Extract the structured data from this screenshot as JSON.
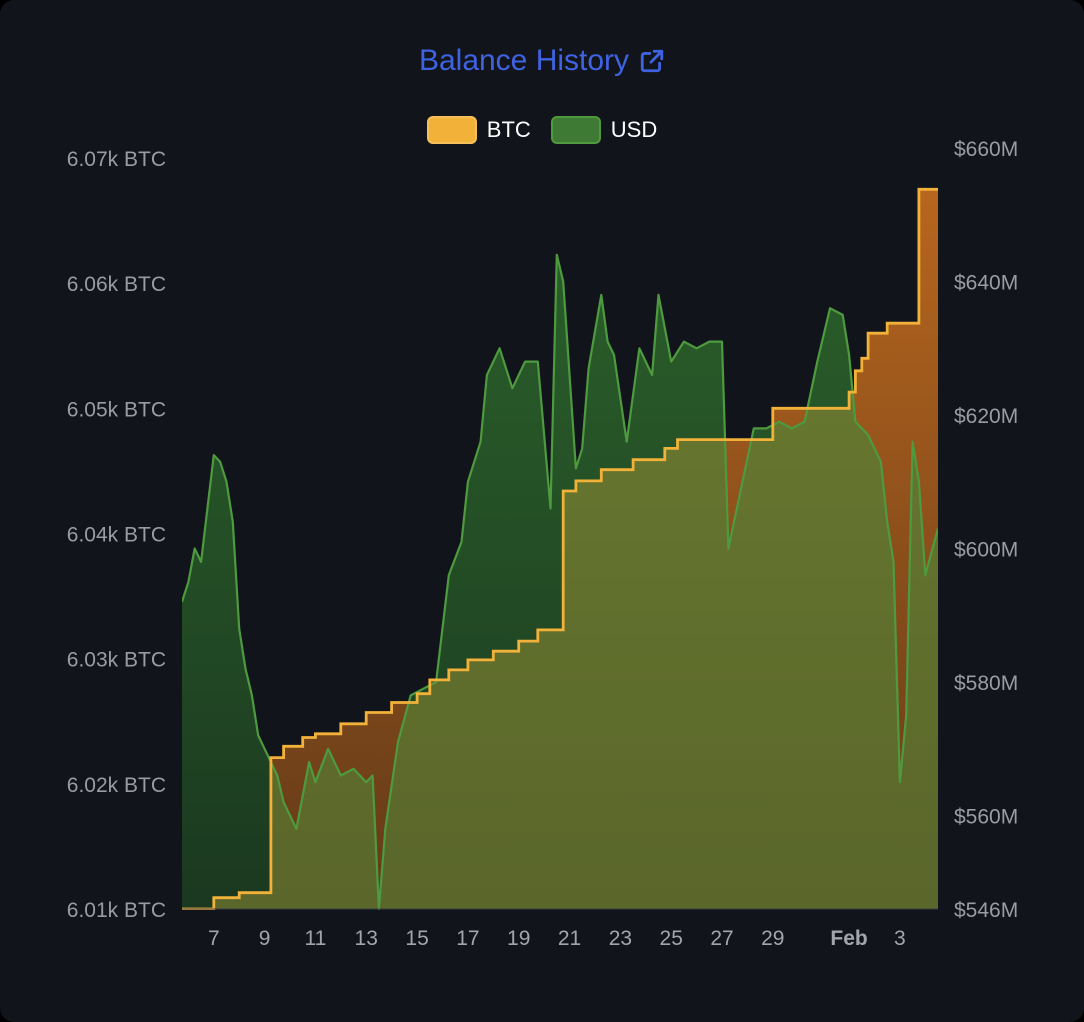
{
  "title": "Balance History",
  "colors": {
    "card_bg": "#12141c",
    "title": "#3f63e0",
    "btc": "#f2b23a",
    "btc_fill": "#b8641e",
    "usd": "#4e9a3f",
    "usd_fill": "#1e4424",
    "axis_text": "#9a9ca3"
  },
  "legend": [
    {
      "label": "BTC",
      "color": "#f2b23a"
    },
    {
      "label": "USD",
      "color": "#4f9a3e"
    }
  ],
  "chart_data": {
    "type": "area",
    "y_left": {
      "ticks": [
        6010,
        6020,
        6030,
        6040,
        6050,
        6060,
        6070
      ],
      "tick_labels": [
        "6.01k BTC",
        "6.02k BTC",
        "6.03k BTC",
        "6.04k BTC",
        "6.05k BTC",
        "6.06k BTC",
        "6.07k BTC"
      ],
      "range": [
        6010,
        6070.8
      ]
    },
    "y_right": {
      "ticks": [
        546,
        560,
        580,
        600,
        620,
        640,
        660
      ],
      "tick_labels": [
        "$546M",
        "$560M",
        "$580M",
        "$600M",
        "$620M",
        "$640M",
        "$660M"
      ],
      "range": [
        546,
        660
      ]
    },
    "x_axis": {
      "range": [
        "Jan 5 18:00",
        "Feb 4 12:00"
      ],
      "ticks": [
        "Jan 7",
        "Jan 9",
        "Jan 11",
        "Jan 13",
        "Jan 15",
        "Jan 17",
        "Jan 19",
        "Jan 21",
        "Jan 23",
        "Jan 25",
        "Jan 27",
        "Jan 29",
        "Feb 1",
        "Feb 3"
      ],
      "tick_labels": [
        "7",
        "9",
        "11",
        "13",
        "15",
        "17",
        "19",
        "21",
        "23",
        "25",
        "27",
        "29",
        "Feb",
        "3"
      ],
      "bold_labels": [
        "Feb"
      ]
    },
    "grid": false,
    "legend_position": "top",
    "series": [
      {
        "name": "BTC",
        "axis": "left",
        "step": true,
        "points": [
          [
            "Jan 5 18:00",
            6010.0
          ],
          [
            "Jan 7 00:00",
            6010.9
          ],
          [
            "Jan 8 00:00",
            6011.3
          ],
          [
            "Jan 9 06:00",
            6022.1
          ],
          [
            "Jan 9 18:00",
            6023.0
          ],
          [
            "Jan 10 12:00",
            6023.7
          ],
          [
            "Jan 11 00:00",
            6024.0
          ],
          [
            "Jan 12 00:00",
            6024.8
          ],
          [
            "Jan 13 00:00",
            6025.7
          ],
          [
            "Jan 14 00:00",
            6026.5
          ],
          [
            "Jan 15 00:00",
            6027.2
          ],
          [
            "Jan 15 12:00",
            6028.3
          ],
          [
            "Jan 16 06:00",
            6029.1
          ],
          [
            "Jan 17 00:00",
            6029.9
          ],
          [
            "Jan 18 00:00",
            6030.6
          ],
          [
            "Jan 19 00:00",
            6031.4
          ],
          [
            "Jan 19 18:00",
            6032.3
          ],
          [
            "Jan 20 18:00",
            6043.4
          ],
          [
            "Jan 21 06:00",
            6044.2
          ],
          [
            "Jan 22 06:00",
            6045.1
          ],
          [
            "Jan 23 12:00",
            6045.9
          ],
          [
            "Jan 24 18:00",
            6046.8
          ],
          [
            "Jan 25 06:00",
            6047.5
          ],
          [
            "Jan 27 18:00",
            6047.5
          ],
          [
            "Jan 29 00:00",
            6050.0
          ],
          [
            "Feb 1 00:00",
            6050.0
          ],
          [
            "Feb 1 00:00",
            6051.3
          ],
          [
            "Feb 1 06:00",
            6053.0
          ],
          [
            "Feb 1 12:00",
            6054.0
          ],
          [
            "Feb 1 18:00",
            6056.0
          ],
          [
            "Feb 2 12:00",
            6056.8
          ],
          [
            "Feb 3 18:00",
            6067.5
          ],
          [
            "Feb 4 12:00",
            6067.5
          ]
        ]
      },
      {
        "name": "USD",
        "axis": "right",
        "step": false,
        "points": [
          [
            "Jan 5 18:00",
            592
          ],
          [
            "Jan 6 00:00",
            595
          ],
          [
            "Jan 6 06:00",
            600
          ],
          [
            "Jan 6 12:00",
            598
          ],
          [
            "Jan 6 18:00",
            606
          ],
          [
            "Jan 7 00:00",
            614
          ],
          [
            "Jan 7 06:00",
            613
          ],
          [
            "Jan 7 12:00",
            610
          ],
          [
            "Jan 7 18:00",
            604
          ],
          [
            "Jan 8 00:00",
            588
          ],
          [
            "Jan 8 06:00",
            582
          ],
          [
            "Jan 8 12:00",
            578
          ],
          [
            "Jan 8 18:00",
            572
          ],
          [
            "Jan 9 00:00",
            570
          ],
          [
            "Jan 9 12:00",
            566
          ],
          [
            "Jan 9 18:00",
            562
          ],
          [
            "Jan 10 06:00",
            558
          ],
          [
            "Jan 10 18:00",
            568
          ],
          [
            "Jan 11 00:00",
            565
          ],
          [
            "Jan 11 12:00",
            570
          ],
          [
            "Jan 12 00:00",
            566
          ],
          [
            "Jan 12 12:00",
            567
          ],
          [
            "Jan 13 00:00",
            565
          ],
          [
            "Jan 13 06:00",
            566
          ],
          [
            "Jan 13 12:00",
            546
          ],
          [
            "Jan 13 18:00",
            558
          ],
          [
            "Jan 14 06:00",
            571
          ],
          [
            "Jan 14 18:00",
            578
          ],
          [
            "Jan 15 06:00",
            579
          ],
          [
            "Jan 15 18:00",
            580
          ],
          [
            "Jan 16 06:00",
            596
          ],
          [
            "Jan 16 18:00",
            601
          ],
          [
            "Jan 17 00:00",
            610
          ],
          [
            "Jan 17 12:00",
            616
          ],
          [
            "Jan 17 18:00",
            626
          ],
          [
            "Jan 18 06:00",
            630
          ],
          [
            "Jan 18 18:00",
            624
          ],
          [
            "Jan 19 06:00",
            628
          ],
          [
            "Jan 19 18:00",
            628
          ],
          [
            "Jan 20 06:00",
            606
          ],
          [
            "Jan 20 12:00",
            644
          ],
          [
            "Jan 20 18:00",
            640
          ],
          [
            "Jan 21 06:00",
            612
          ],
          [
            "Jan 21 12:00",
            615
          ],
          [
            "Jan 21 18:00",
            627
          ],
          [
            "Jan 22 06:00",
            638
          ],
          [
            "Jan 22 12:00",
            631
          ],
          [
            "Jan 22 18:00",
            629
          ],
          [
            "Jan 23 06:00",
            616
          ],
          [
            "Jan 23 18:00",
            630
          ],
          [
            "Jan 24 06:00",
            626
          ],
          [
            "Jan 24 12:00",
            638
          ],
          [
            "Jan 25 00:00",
            628
          ],
          [
            "Jan 25 12:00",
            631
          ],
          [
            "Jan 26 00:00",
            630
          ],
          [
            "Jan 26 12:00",
            631
          ],
          [
            "Jan 27 00:00",
            631
          ],
          [
            "Jan 27 06:00",
            600
          ],
          [
            "Jan 27 18:00",
            609
          ],
          [
            "Jan 28 06:00",
            618
          ],
          [
            "Jan 28 18:00",
            618
          ],
          [
            "Jan 29 06:00",
            619
          ],
          [
            "Jan 29 18:00",
            618
          ],
          [
            "Jan 30 06:00",
            619
          ],
          [
            "Jan 30 18:00",
            628
          ],
          [
            "Jan 31 06:00",
            636
          ],
          [
            "Jan 31 18:00",
            635
          ],
          [
            "Feb 1 00:00",
            629
          ],
          [
            "Feb 1 06:00",
            619
          ],
          [
            "Feb 1 12:00",
            618
          ],
          [
            "Feb 1 18:00",
            617
          ],
          [
            "Feb 2 06:00",
            613
          ],
          [
            "Feb 2 12:00",
            604
          ],
          [
            "Feb 2 18:00",
            598
          ],
          [
            "Feb 3 00:00",
            565
          ],
          [
            "Feb 3 06:00",
            575
          ],
          [
            "Feb 3 12:00",
            616
          ],
          [
            "Feb 3 18:00",
            610
          ],
          [
            "Feb 4 00:00",
            596
          ],
          [
            "Feb 4 12:00",
            603
          ]
        ]
      }
    ]
  }
}
